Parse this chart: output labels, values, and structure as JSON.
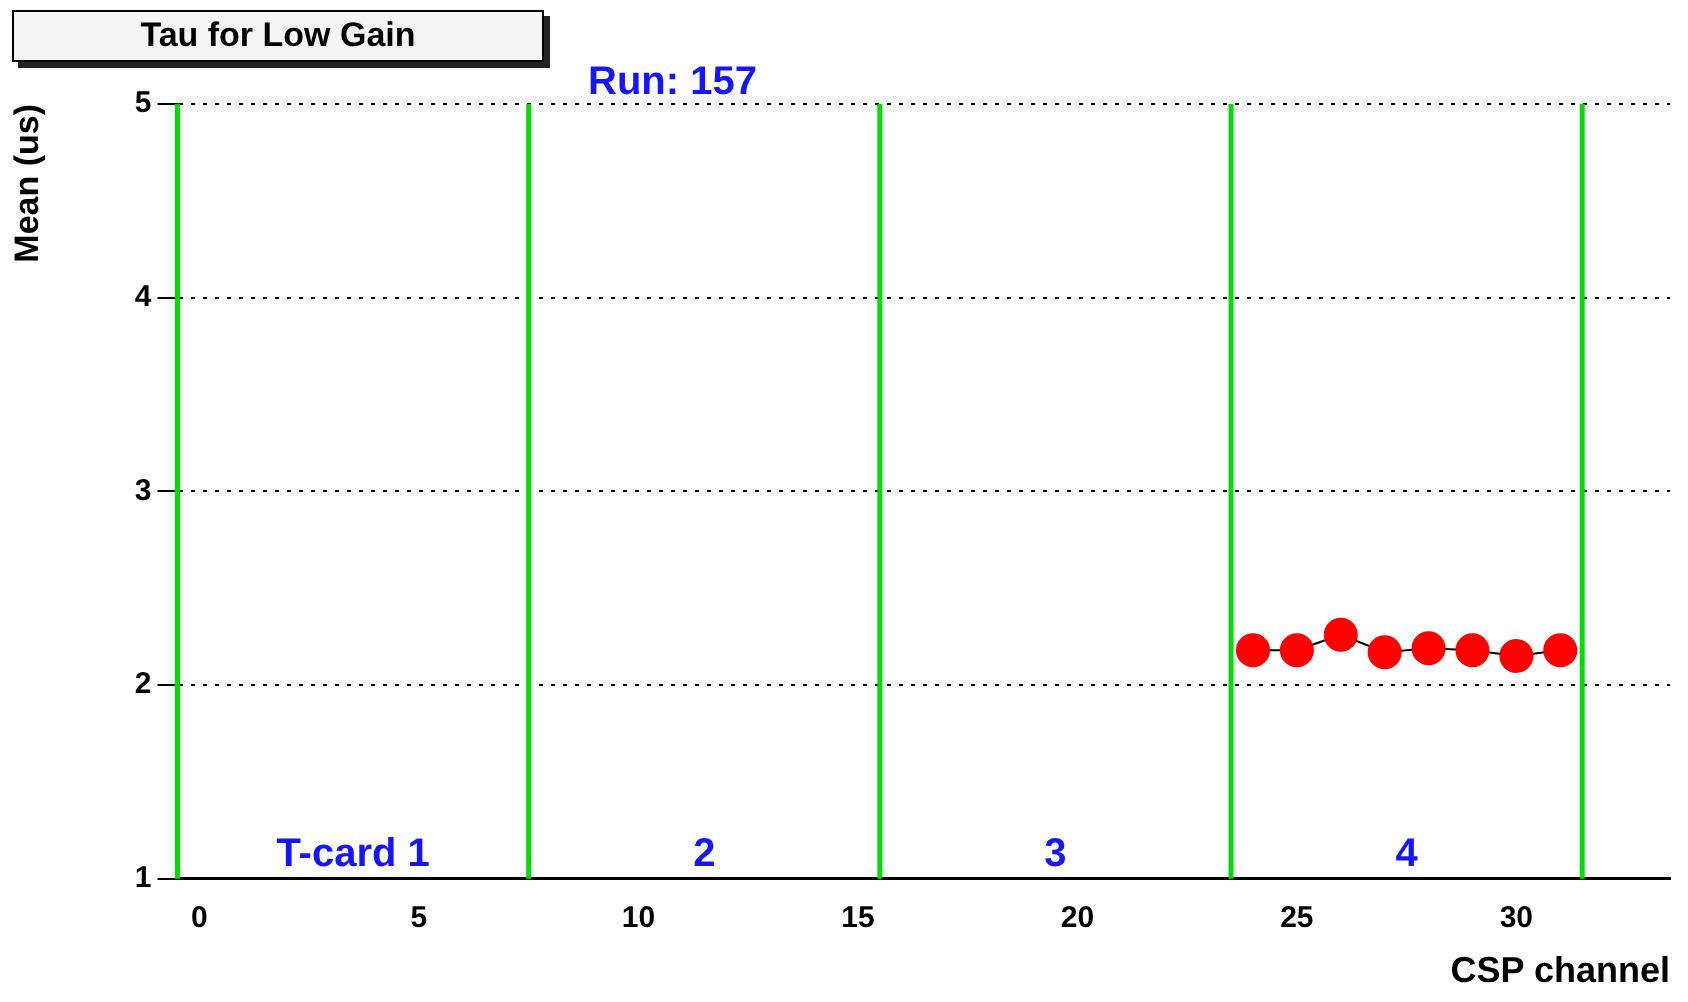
{
  "chart_data": {
    "type": "line",
    "title": "Tau for Low Gain",
    "subtitle": "Run: 157",
    "xlabel": "CSP channel",
    "ylabel": "Mean (us)",
    "x": [
      24,
      25,
      26,
      27,
      28,
      29,
      30,
      31
    ],
    "series": [
      {
        "color": "#ff0000",
        "values": [
          2.18,
          2.18,
          2.26,
          2.17,
          2.19,
          2.18,
          2.15,
          2.18
        ]
      }
    ],
    "xlim": [
      -0.5,
      33.5
    ],
    "xticks": [
      0,
      5,
      10,
      15,
      20,
      25,
      30
    ],
    "ylim": [
      1,
      5
    ],
    "yticks": [
      1,
      2,
      3,
      4,
      5
    ],
    "grid": "y",
    "legend": false,
    "marker": "circle",
    "line_style": "solid",
    "ref_lines": [
      {
        "axis": "x",
        "value": -0.5,
        "color": "#00dd00"
      },
      {
        "axis": "x",
        "value": 7.5,
        "color": "#00dd00"
      },
      {
        "axis": "x",
        "value": 15.5,
        "color": "#00dd00"
      },
      {
        "axis": "x",
        "value": 23.5,
        "color": "#00dd00"
      },
      {
        "axis": "x",
        "value": 31.5,
        "color": "#00dd00"
      }
    ],
    "annotations": [
      "T-card 1",
      "2",
      "3",
      "4"
    ]
  }
}
